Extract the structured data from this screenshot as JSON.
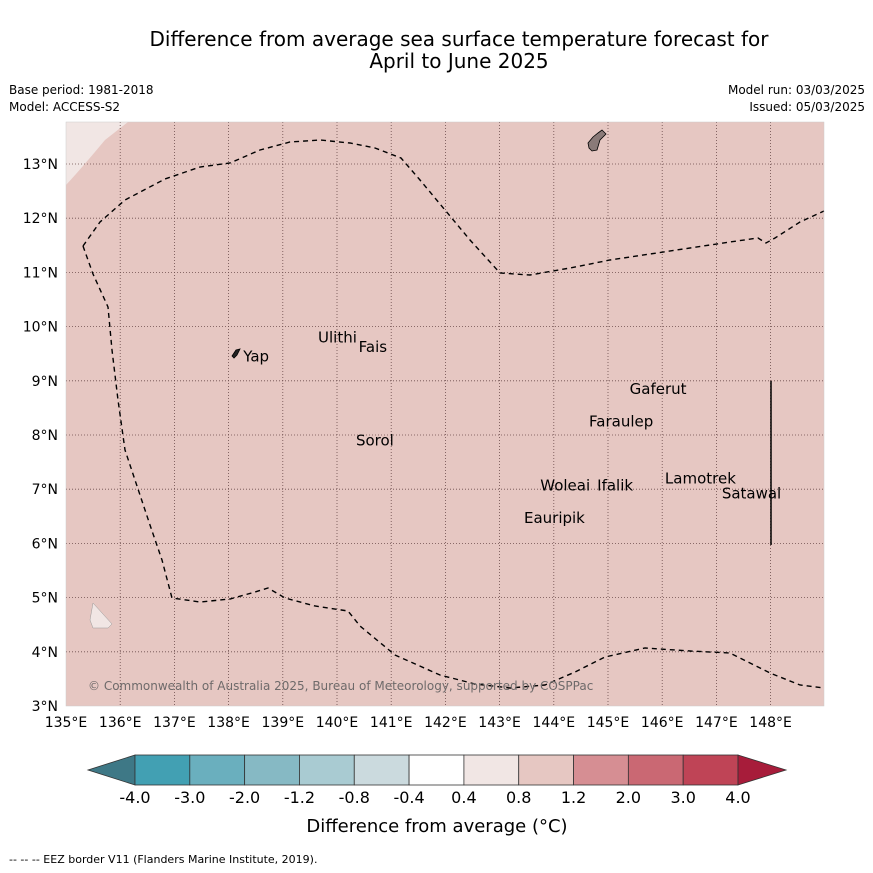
{
  "title_line1": "Difference from average sea surface temperature forecast for",
  "title_line2": "April to June 2025",
  "meta_left": [
    "Base period: 1981-2018",
    "Model: ACCESS-S2"
  ],
  "meta_right": [
    "Model run: 03/03/2025",
    "Issued: 05/03/2025"
  ],
  "map": {
    "lon_ticks": [
      "135°E",
      "136°E",
      "137°E",
      "138°E",
      "139°E",
      "140°E",
      "141°E",
      "142°E",
      "143°E",
      "144°E",
      "145°E",
      "146°E",
      "147°E",
      "148°E"
    ],
    "lat_ticks": [
      "3°N",
      "4°N",
      "5°N",
      "6°N",
      "7°N",
      "8°N",
      "9°N",
      "10°N",
      "11°N",
      "12°N",
      "13°N"
    ],
    "fill_color": "#e6c7c2",
    "places": [
      {
        "name": "Yap",
        "lon": 138.27,
        "lat": 9.45
      },
      {
        "name": "Ulithi",
        "lon": 139.65,
        "lat": 9.8
      },
      {
        "name": "Fais",
        "lon": 140.4,
        "lat": 9.62
      },
      {
        "name": "Sorol",
        "lon": 140.35,
        "lat": 7.9
      },
      {
        "name": "Gaferut",
        "lon": 145.4,
        "lat": 8.85
      },
      {
        "name": "Faraulep",
        "lon": 144.65,
        "lat": 8.25
      },
      {
        "name": "Lamotrek",
        "lon": 146.05,
        "lat": 7.2
      },
      {
        "name": "Satawal",
        "lon": 147.1,
        "lat": 6.92
      },
      {
        "name": "Woleai",
        "lon": 143.75,
        "lat": 7.07
      },
      {
        "name": "Ifalik",
        "lon": 144.8,
        "lat": 7.07
      },
      {
        "name": "Eauripik",
        "lon": 143.45,
        "lat": 6.47
      }
    ],
    "copyright": "© Commonwealth of Australia 2025, Bureau of Meteorology, supported by COSPPac"
  },
  "colorbar": {
    "labels": [
      "-4.0",
      "-3.0",
      "-2.0",
      "-1.2",
      "-0.8",
      "-0.4",
      "0.4",
      "0.8",
      "1.2",
      "2.0",
      "3.0",
      "4.0"
    ],
    "colors": [
      "#42a0b3",
      "#6aafbe",
      "#86b9c4",
      "#a9cbd2",
      "#cbdade",
      "#ffffff",
      "#f1e6e4",
      "#e6c7c2",
      "#d68e93",
      "#ca6873",
      "#bf4456"
    ],
    "under_color": "#3e7886",
    "over_color": "#a71c3a",
    "title": "Difference from average (°C)"
  },
  "footer": "-- -- -- EEZ border V11 (Flanders Marine Institute, 2019)."
}
